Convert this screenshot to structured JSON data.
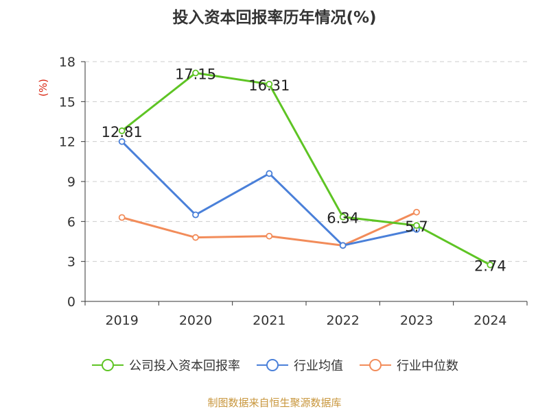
{
  "title": "投入资本回报率历年情况(%)",
  "source": "制图数据来自恒生聚源数据库",
  "chart_data": {
    "type": "line",
    "categories": [
      "2019",
      "2020",
      "2021",
      "2022",
      "2023",
      "2024"
    ],
    "ylabel": "(%)",
    "ylim": [
      0,
      18
    ],
    "yticks": [
      0,
      3,
      6,
      9,
      12,
      15,
      18
    ],
    "grid": true,
    "legend_position": "bottom",
    "series": [
      {
        "name": "公司投入资本回报率",
        "color": "#5ec424",
        "values": [
          12.81,
          17.15,
          16.31,
          6.34,
          5.7,
          2.74
        ],
        "labels": [
          "12.81",
          "17.15",
          "16.31",
          "6.34",
          "5.7",
          "2.74"
        ]
      },
      {
        "name": "行业均值",
        "color": "#4a80d9",
        "values": [
          12.0,
          6.5,
          9.6,
          4.2,
          5.4,
          null
        ]
      },
      {
        "name": "行业中位数",
        "color": "#f28c5a",
        "values": [
          6.3,
          4.8,
          4.9,
          4.2,
          6.7,
          null
        ]
      }
    ]
  }
}
